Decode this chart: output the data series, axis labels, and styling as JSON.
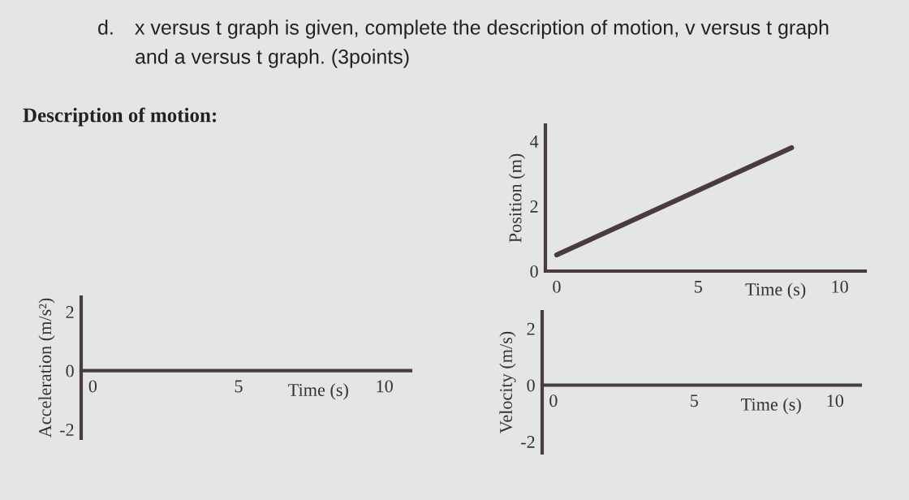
{
  "chart_data": [
    {
      "type": "other",
      "annotations": [
        "d.",
        "x versus t graph is given, complete the description of motion, v versus t graph",
        "and a versus t graph. (3points)",
        "Description of motion:"
      ]
    },
    {
      "type": "line",
      "xlabel": "Time (s)",
      "ylabel": "Position (m)",
      "x": [
        0,
        8.3
      ],
      "series": [
        {
          "color": "#4a3a44",
          "values": [
            0.5,
            3.8
          ]
        }
      ],
      "xlim": [
        -0.4,
        10.9
      ],
      "ylim": [
        0,
        4.5
      ],
      "xticks": [
        0,
        5,
        10
      ],
      "yticks": [
        0,
        2,
        4
      ],
      "grid": false,
      "legend": false
    },
    {
      "type": "line",
      "xlabel": "Time (s)",
      "ylabel": "Acceleration (m/s²)",
      "xlim": [
        -0.4,
        10.9
      ],
      "ylim": [
        -2.3,
        2.5
      ],
      "xticks": [
        0,
        5,
        10
      ],
      "yticks": [
        -2,
        0,
        2
      ],
      "grid": false,
      "legend": false
    },
    {
      "type": "line",
      "xlabel": "Time (s)",
      "ylabel": "Velocity (m/s)",
      "xlim": [
        -0.4,
        10.9
      ],
      "ylim": [
        -2.4,
        2.6
      ],
      "xticks": [
        0,
        5,
        10
      ],
      "yticks": [
        -2,
        0,
        2
      ],
      "grid": false,
      "legend": false
    }
  ]
}
